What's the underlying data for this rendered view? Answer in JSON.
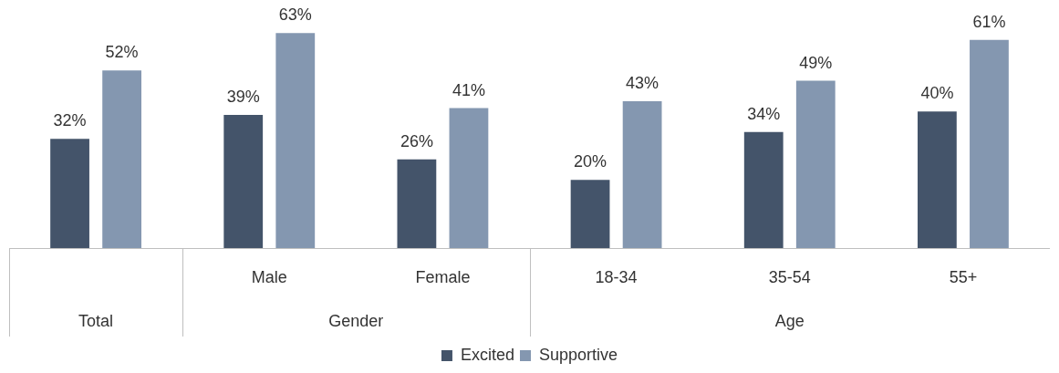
{
  "chart_data": {
    "type": "bar",
    "categories": [
      null,
      "Male",
      "Female",
      "18-34",
      "35-54",
      "55+"
    ],
    "series": [
      {
        "name": "Excited",
        "color": "#44546a",
        "values": [
          32,
          39,
          26,
          20,
          34,
          40
        ],
        "value_labels": [
          "32%",
          "39%",
          "26%",
          "20%",
          "34%",
          "40%"
        ]
      },
      {
        "name": "Supportive",
        "color": "#8497b0",
        "values": [
          52,
          63,
          41,
          43,
          49,
          61
        ],
        "value_labels": [
          "52%",
          "63%",
          "41%",
          "43%",
          "49%",
          "61%"
        ]
      }
    ],
    "annotations": [
      "Total",
      "Gender",
      "Age"
    ],
    "grid": false,
    "legend": "bottom"
  }
}
